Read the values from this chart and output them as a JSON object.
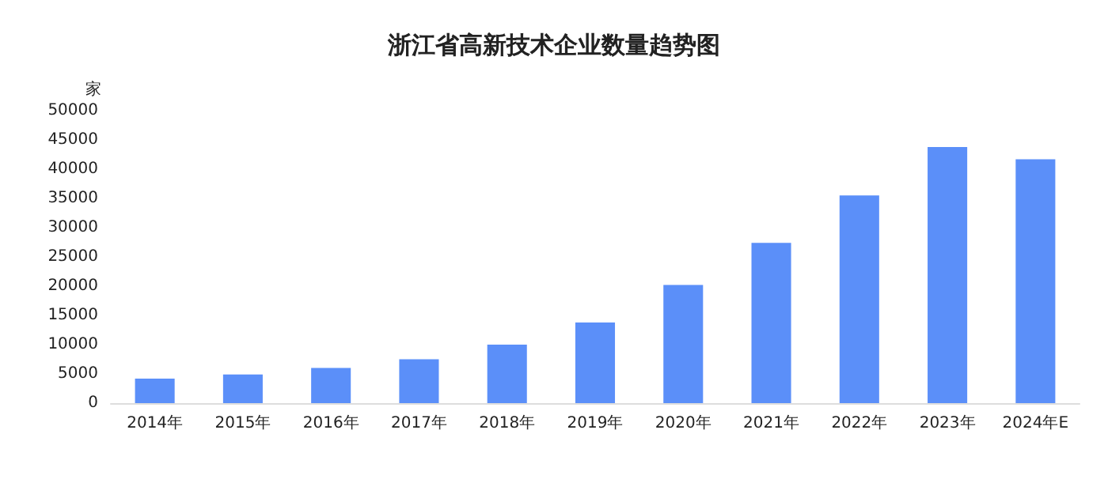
{
  "chart_data": {
    "type": "bar",
    "title": "浙江省高新技术企业数量趋势图",
    "ylabel": "家",
    "categories": [
      "2014年",
      "2015年",
      "2016年",
      "2017年",
      "2018年",
      "2019年",
      "2020年",
      "2021年",
      "2022年",
      "2023年",
      "2024年E"
    ],
    "values": [
      4200,
      4900,
      6000,
      7500,
      10000,
      13800,
      20200,
      27400,
      35500,
      43800,
      41700
    ],
    "color": "#5b8ff9",
    "ylim": [
      0,
      50000
    ],
    "yticks": [
      0,
      5000,
      10000,
      15000,
      20000,
      25000,
      30000,
      35000,
      40000,
      45000,
      50000
    ],
    "grid": false
  }
}
